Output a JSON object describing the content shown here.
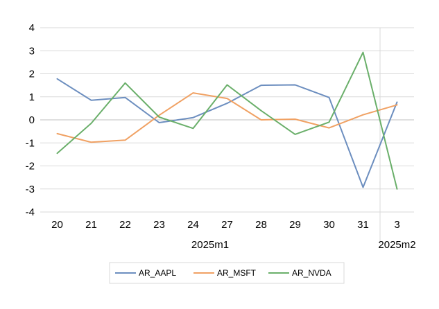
{
  "chart_data": {
    "type": "line",
    "categories": [
      "20",
      "21",
      "22",
      "23",
      "24",
      "27",
      "28",
      "29",
      "30",
      "31",
      "3"
    ],
    "category_groups": [
      {
        "label": "2025m1",
        "start": 0,
        "end": 9
      },
      {
        "label": "2025m2",
        "start": 10,
        "end": 10
      }
    ],
    "ylim": [
      -4,
      4
    ],
    "yticks": [
      "-4",
      "-3",
      "-2",
      "-1",
      "0",
      "1",
      "2",
      "3",
      "4"
    ],
    "grid": true,
    "legend_position": "bottom",
    "series": [
      {
        "name": "AR_AAPL",
        "color": "#6c8ebf",
        "values": [
          1.78,
          0.85,
          0.97,
          -0.12,
          0.1,
          0.72,
          1.5,
          1.52,
          0.97,
          -2.93,
          0.77
        ]
      },
      {
        "name": "AR_MSFT",
        "color": "#f0a163",
        "values": [
          -0.6,
          -0.97,
          -0.88,
          0.2,
          1.17,
          0.93,
          0.0,
          0.03,
          -0.35,
          0.22,
          0.65
        ]
      },
      {
        "name": "AR_NVDA",
        "color": "#6aaf6a",
        "values": [
          -1.45,
          -0.15,
          1.6,
          0.12,
          -0.37,
          1.52,
          0.4,
          -0.63,
          -0.1,
          2.93,
          -3.0
        ]
      }
    ]
  }
}
